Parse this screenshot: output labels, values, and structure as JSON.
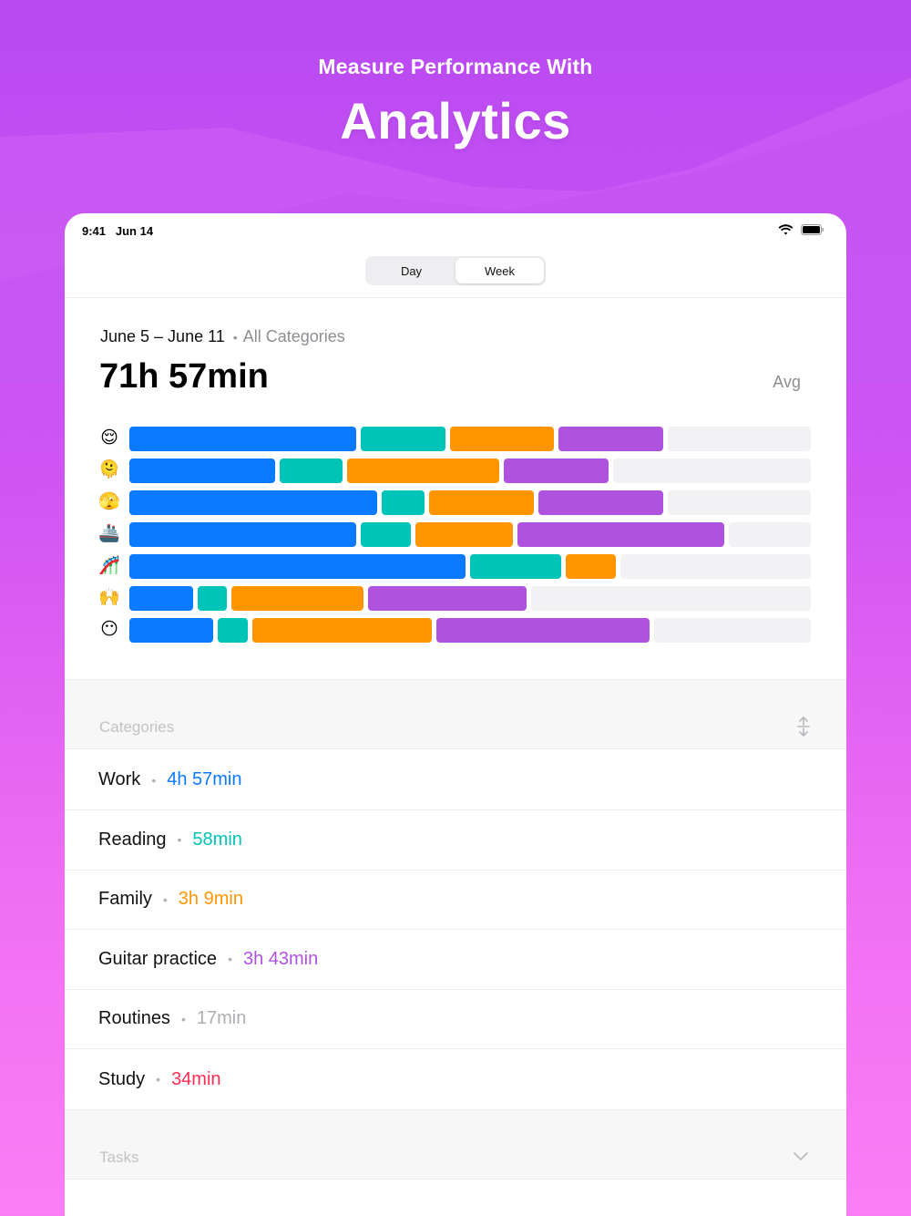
{
  "hero": {
    "subtitle": "Measure Performance With",
    "title": "Analytics"
  },
  "status_bar": {
    "time": "9:41",
    "date": "Jun 14",
    "icons": [
      "wifi-icon",
      "battery-icon"
    ]
  },
  "segmented_control": {
    "options": [
      "Day",
      "Week"
    ],
    "selected": "Week"
  },
  "summary": {
    "date_range": "June 5 – June 11",
    "separator": "•",
    "category_filter": "All Categories",
    "total": "71h 57min",
    "avg_label": "Avg"
  },
  "colors": {
    "work": "#0a7aff",
    "reading": "#00c4b8",
    "family": "#ff9500",
    "guitar": "#af52de",
    "routines": "#aeaeb2",
    "study": "#ff2d55",
    "remainder": "#f2f2f5"
  },
  "chart_data": {
    "type": "bar",
    "stacked": true,
    "orientation": "horizontal",
    "max_total": 1,
    "categories": [
      "😌",
      "🫠",
      "🫣",
      "🚢",
      "🎢",
      "🙌",
      "😶"
    ],
    "series": [
      {
        "name": "Work",
        "color": "#0a7aff",
        "values": [
          0.34,
          0.22,
          0.37,
          0.34,
          0.5,
          0.1,
          0.13
        ]
      },
      {
        "name": "Reading",
        "color": "#00c4b8",
        "values": [
          0.13,
          0.1,
          0.07,
          0.08,
          0.14,
          0.05,
          0.05
        ]
      },
      {
        "name": "Family",
        "color": "#ff9500",
        "values": [
          0.16,
          0.23,
          0.16,
          0.15,
          0.08,
          0.2,
          0.27
        ]
      },
      {
        "name": "Guitar practice",
        "color": "#af52de",
        "values": [
          0.16,
          0.16,
          0.19,
          0.31,
          0.0,
          0.24,
          0.32
        ]
      }
    ]
  },
  "categories_section": {
    "label": "Categories",
    "sort_icon": "sort-arrows-icon",
    "items": [
      {
        "name": "Work",
        "dot": "•",
        "time": "4h 57min",
        "color": "#0a7aff"
      },
      {
        "name": "Reading",
        "dot": "•",
        "time": "58min",
        "color": "#00c4b8"
      },
      {
        "name": "Family",
        "dot": "•",
        "time": "3h 9min",
        "color": "#ff9500"
      },
      {
        "name": "Guitar practice",
        "dot": "•",
        "time": "3h 43min",
        "color": "#af52de"
      },
      {
        "name": "Routines",
        "dot": "•",
        "time": "17min",
        "color": "#aeaeb2"
      },
      {
        "name": "Study",
        "dot": "•",
        "time": "34min",
        "color": "#ff2d55"
      }
    ]
  },
  "tasks_section": {
    "label": "Tasks",
    "expand_icon": "chevron-down-icon"
  }
}
